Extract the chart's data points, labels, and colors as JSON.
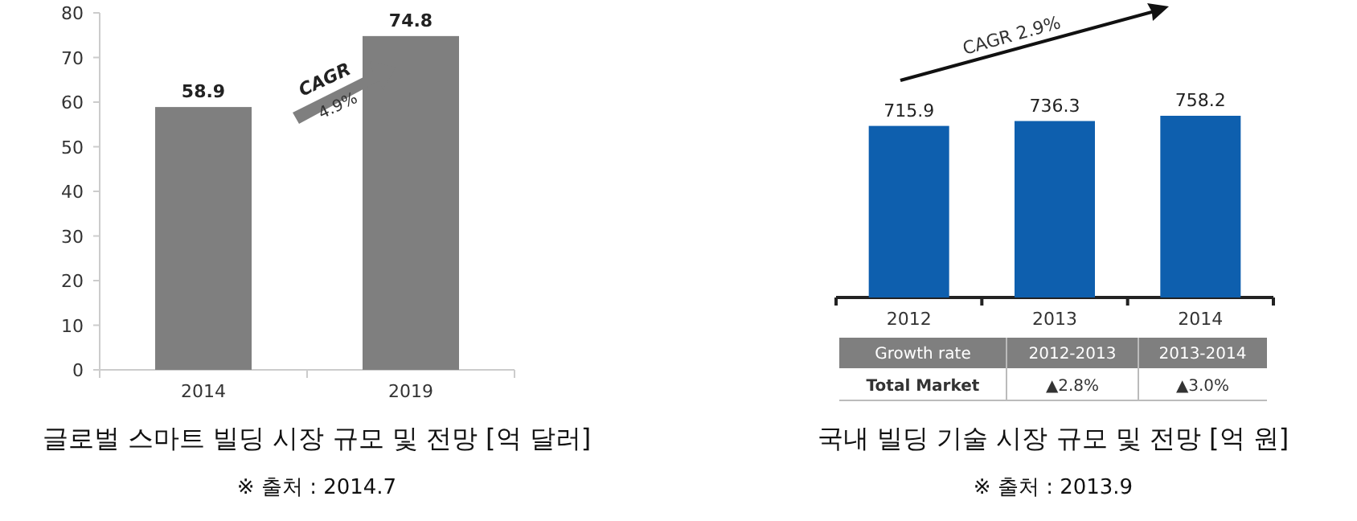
{
  "chart_data": [
    {
      "type": "bar",
      "title": "글로벌 스마트 빌딩 시장 규모 및 전망 [억 달러]",
      "categories": [
        "2014",
        "2019"
      ],
      "values": [
        58.9,
        74.8
      ],
      "color": "#7f7f7f",
      "data_labels": true,
      "ylim": [
        0,
        80
      ],
      "yticks": [
        0,
        10,
        20,
        30,
        40,
        50,
        60,
        70,
        80
      ],
      "annotations": [
        "CAGR",
        "4.9%",
        "※ 출처 : 2014.7"
      ]
    },
    {
      "type": "bar",
      "title": "국내 빌딩 기술 시장 규모 및 전망 [억 원]",
      "categories": [
        "2012",
        "2013",
        "2014"
      ],
      "values": [
        715.9,
        736.3,
        758.2
      ],
      "data_labels": true,
      "color": "#0e5fae",
      "tick_labels": "x",
      "annotations": [
        "CAGR 2.9%",
        "Growth rate",
        "2012-2013",
        "2013-2014",
        "Total Market",
        "▲2.8%",
        "▲3.0%",
        "※ 출처 : 2013.9"
      ]
    }
  ]
}
